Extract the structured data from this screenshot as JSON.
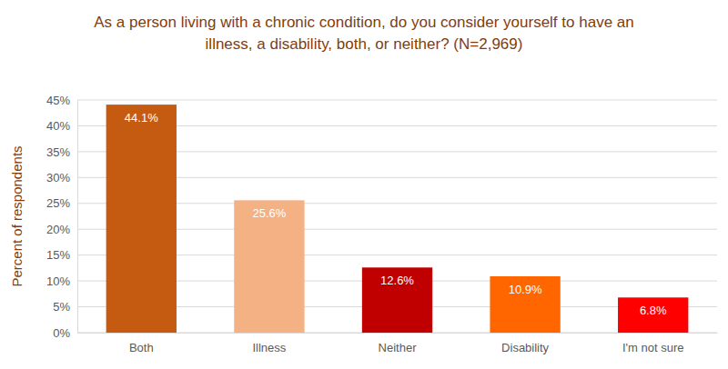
{
  "chart_data": {
    "type": "bar",
    "title": "As a person living with a chronic condition, do you consider yourself to have an illness, a disability, both, or neither? (N=2,969)",
    "y_label": "Percent of respondents",
    "categories": [
      "Both",
      "Illness",
      "Neither",
      "Disability",
      "I'm not sure"
    ],
    "values": [
      44.1,
      25.6,
      12.6,
      10.9,
      6.8
    ],
    "value_labels": [
      "44.1%",
      "25.6%",
      "12.6%",
      "10.9%",
      "6.8%"
    ],
    "colors": [
      "#c55a11",
      "#f4b183",
      "#c00000",
      "#ff6600",
      "#ff0000"
    ],
    "ylim": [
      0,
      45
    ],
    "yticks": [
      {
        "value": 0,
        "label": "0%"
      },
      {
        "value": 5,
        "label": "5%"
      },
      {
        "value": 10,
        "label": "10%"
      },
      {
        "value": 15,
        "label": "15%"
      },
      {
        "value": 20,
        "label": "20%"
      },
      {
        "value": 25,
        "label": "25%"
      },
      {
        "value": 30,
        "label": "30%"
      },
      {
        "value": 35,
        "label": "35%"
      },
      {
        "value": 40,
        "label": "40%"
      },
      {
        "value": 45,
        "label": "45%"
      }
    ],
    "grid": true,
    "data_labels": true
  }
}
